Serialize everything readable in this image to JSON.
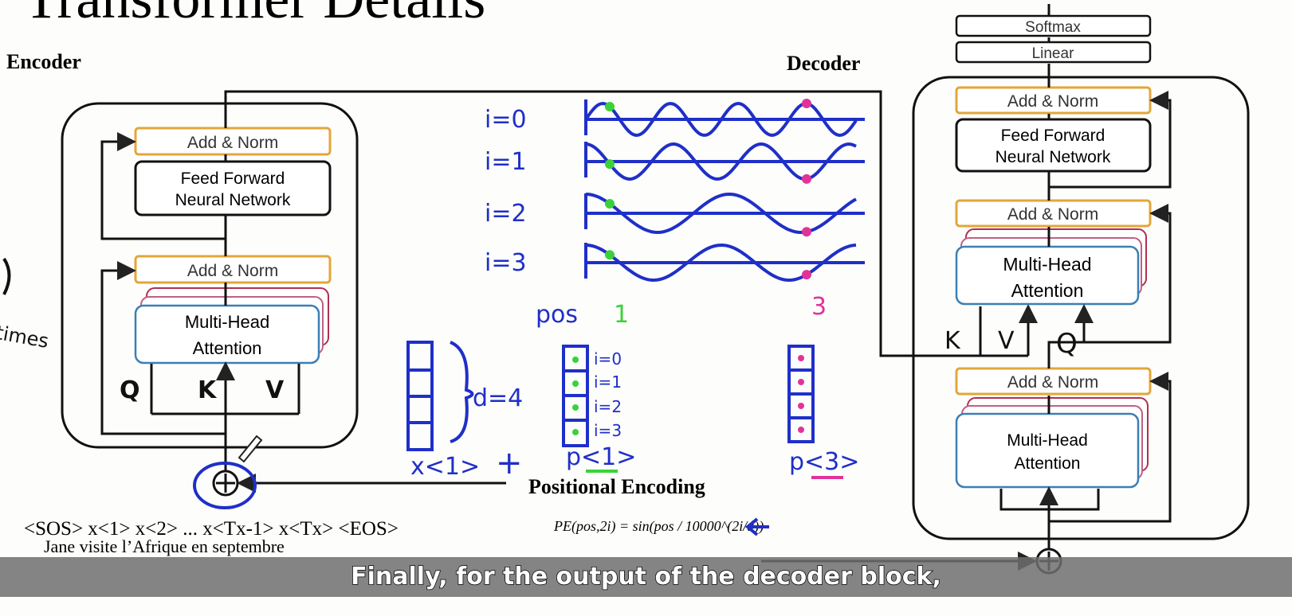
{
  "slide": {
    "title": "Transformer Details",
    "encoder_label": "Encoder",
    "decoder_label": "Decoder",
    "encoder": {
      "add_norm_top": "Add & Norm",
      "ffn_line1": "Feed Forward",
      "ffn_line2": "Neural Network",
      "add_norm_bottom": "Add & Norm",
      "mha_line1": "Multi-Head",
      "mha_line2": "Attention",
      "q": "Q",
      "k": "K",
      "v": "V"
    },
    "decoder": {
      "softmax": "Softmax",
      "linear": "Linear",
      "add_norm_1": "Add & Norm",
      "ffn_line1": "Feed Forward",
      "ffn_line2": "Neural Network",
      "add_norm_2": "Add & Norm",
      "mha1_line1": "Multi-Head",
      "mha1_line2": "Attention",
      "k": "K",
      "v": "V",
      "q": "Q",
      "add_norm_3": "Add & Norm",
      "mha2_line1": "Multi-Head",
      "mha2_line2": "Attention"
    },
    "input_sequence": "<SOS> x<1> x<2> ... x<Tx-1> x<Tx> <EOS>",
    "input_sentence": "Jane visite l’Afrique en septembre",
    "positional_encoding_title": "Positional Encoding",
    "formula": "PE(pos,2i) = sin(pos / 10000^(2i/d))",
    "annotations": {
      "i_labels": [
        "i=0",
        "i=1",
        "i=2",
        "i=3"
      ],
      "pos_label": "pos",
      "pos_1": "1",
      "pos_3": "3",
      "d_label": "d=4",
      "x1": "x<1>",
      "plus": "+",
      "p1": "p<1>",
      "p3": "p<3>",
      "left_margin": "times"
    },
    "colors": {
      "add_norm_border": "#e3a63a",
      "mha_border": "#3b7fb5",
      "ink": "#1f2fc8",
      "green": "#3ad13a",
      "magenta": "#e0339a"
    }
  },
  "subtitle": "Finally, for the output of the decoder block,"
}
